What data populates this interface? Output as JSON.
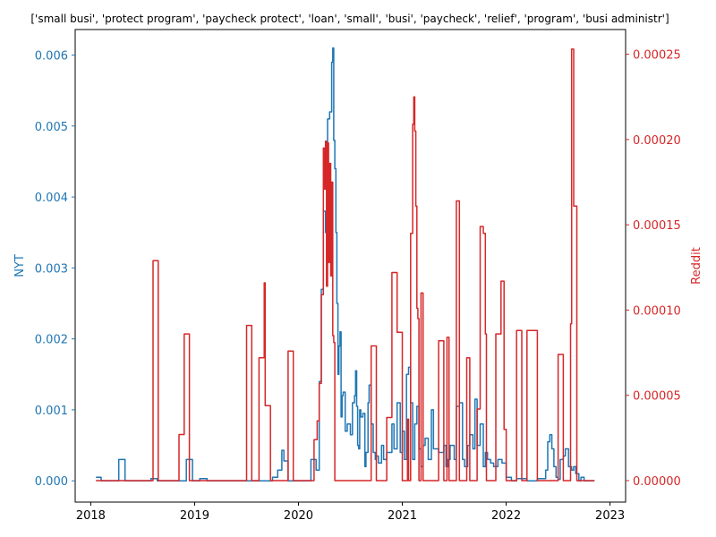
{
  "chart_data": {
    "type": "line",
    "title": "['small busi', 'protect program', 'paycheck protect', 'loan', 'small', 'busi', 'paycheck', 'relief', 'program', 'busi administr']",
    "xlabel": "",
    "ylabel_left": "NYT",
    "ylabel_right": "Reddit",
    "xlim": [
      2017.85,
      2023.15
    ],
    "ylim_left": [
      -0.0003,
      0.00636
    ],
    "ylim_right": [
      -1.26e-05,
      0.0002645
    ],
    "x_ticks": [
      2018,
      2019,
      2020,
      2021,
      2022,
      2023
    ],
    "x_tick_labels": [
      "2018",
      "2019",
      "2020",
      "2021",
      "2022",
      "2023"
    ],
    "y_ticks_left": [
      0,
      0.001,
      0.002,
      0.003,
      0.004,
      0.005,
      0.006
    ],
    "y_tick_labels_left": [
      "0.000",
      "0.001",
      "0.002",
      "0.003",
      "0.004",
      "0.005",
      "0.006"
    ],
    "y_ticks_right": [
      0,
      5e-05,
      0.0001,
      0.00015,
      0.0002,
      0.00025
    ],
    "y_tick_labels_right": [
      "0.00000",
      "0.00005",
      "0.00010",
      "0.00015",
      "0.00020",
      "0.00025"
    ],
    "grid": false,
    "legend": "none",
    "series": [
      {
        "axis": "left",
        "color": "#1f77b4",
        "x": [
          2018.05,
          2018.1,
          2018.27,
          2018.33,
          2018.58,
          2018.62,
          2018.64,
          2018.68,
          2018.92,
          2018.98,
          2019.05,
          2019.12,
          2019.55,
          2019.75,
          2019.8,
          2019.84,
          2019.86,
          2019.9,
          2019.93,
          2020.07,
          2020.12,
          2020.17,
          2020.2,
          2020.22,
          2020.24,
          2020.26,
          2020.28,
          2020.3,
          2020.32,
          2020.33,
          2020.34,
          2020.35,
          2020.36,
          2020.37,
          2020.38,
          2020.39,
          2020.4,
          2020.41,
          2020.42,
          2020.43,
          2020.45,
          2020.47,
          2020.5,
          2020.52,
          2020.54,
          2020.55,
          2020.56,
          2020.57,
          2020.58,
          2020.59,
          2020.6,
          2020.62,
          2020.64,
          2020.65,
          2020.67,
          2020.68,
          2020.7,
          2020.72,
          2020.74,
          2020.75,
          2020.77,
          2020.8,
          2020.82,
          2020.85,
          2020.9,
          2020.92,
          2020.95,
          2020.98,
          2021.0,
          2021.02,
          2021.04,
          2021.06,
          2021.08,
          2021.1,
          2021.12,
          2021.14,
          2021.16,
          2021.18,
          2021.2,
          2021.22,
          2021.25,
          2021.28,
          2021.3,
          2021.35,
          2021.4,
          2021.42,
          2021.44,
          2021.46,
          2021.5,
          2021.52,
          2021.55,
          2021.58,
          2021.6,
          2021.63,
          2021.65,
          2021.68,
          2021.7,
          2021.72,
          2021.75,
          2021.78,
          2021.8,
          2021.82,
          2021.85,
          2021.88,
          2021.92,
          2021.96,
          2022.0,
          2022.05,
          2022.1,
          2022.2,
          2022.3,
          2022.38,
          2022.4,
          2022.42,
          2022.44,
          2022.46,
          2022.48,
          2022.5,
          2022.52,
          2022.55,
          2022.57,
          2022.6,
          2022.63,
          2022.65,
          2022.67,
          2022.7,
          2022.72,
          2022.75,
          2022.78,
          2022.85
        ],
        "y": [
          5e-05,
          0.0,
          0.0003,
          0.0,
          3e-05,
          3e-05,
          0.0,
          0.0,
          0.0003,
          0.0,
          3e-05,
          0.0,
          0.0,
          5e-05,
          0.00015,
          0.00043,
          0.00028,
          0.0,
          0.0,
          0.0,
          0.0003,
          0.00015,
          0.0014,
          0.0027,
          0.0038,
          0.0035,
          0.0051,
          0.0052,
          0.0059,
          0.0061,
          0.0048,
          0.0044,
          0.0035,
          0.0025,
          0.0015,
          0.0019,
          0.0021,
          0.0009,
          0.0012,
          0.00125,
          0.0007,
          0.0008,
          0.00065,
          0.0011,
          0.0012,
          0.00155,
          0.00105,
          0.0005,
          0.00045,
          0.001,
          0.0009,
          0.00095,
          0.0002,
          0.0004,
          0.0011,
          0.00135,
          0.0008,
          0.0004,
          0.0003,
          0.00035,
          0.00025,
          0.0005,
          0.0003,
          0.0004,
          0.0008,
          0.00045,
          0.0011,
          0.0004,
          0.0007,
          0.0003,
          0.0015,
          0.0016,
          0.0011,
          0.0003,
          0.0008,
          0.00105,
          0.00045,
          0.0002,
          0.0005,
          0.0006,
          0.0003,
          0.001,
          0.00045,
          0.0004,
          0.0005,
          0.0002,
          0.0003,
          0.0005,
          0.0003,
          0.00105,
          0.0011,
          0.0003,
          0.0002,
          0.0005,
          0.00065,
          0.00045,
          0.00115,
          0.0005,
          0.0008,
          0.0002,
          0.0004,
          0.0003,
          0.00025,
          0.0002,
          0.0003,
          0.00025,
          5e-05,
          0.0,
          3e-05,
          0.0,
          3e-05,
          0.00015,
          0.00055,
          0.00065,
          0.00045,
          0.0002,
          5e-05,
          2e-05,
          0.0003,
          0.00035,
          0.00045,
          0.0002,
          0.00015,
          0.0002,
          0.0001,
          0.0,
          5e-05,
          0.0,
          0.0,
          0.0
        ]
      },
      {
        "axis": "right",
        "color": "#d62728",
        "x": [
          2018.05,
          2018.6,
          2018.65,
          2018.75,
          2018.85,
          2018.9,
          2018.95,
          2019.5,
          2019.55,
          2019.62,
          2019.67,
          2019.68,
          2019.73,
          2019.9,
          2019.95,
          2020.15,
          2020.18,
          2020.2,
          2020.22,
          2020.24,
          2020.25,
          2020.26,
          2020.27,
          2020.28,
          2020.29,
          2020.3,
          2020.31,
          2020.32,
          2020.33,
          2020.34,
          2020.35,
          2020.37,
          2020.4,
          2020.7,
          2020.75,
          2020.8,
          2020.85,
          2020.9,
          2020.95,
          2021.0,
          2021.05,
          2021.06,
          2021.08,
          2021.1,
          2021.11,
          2021.12,
          2021.13,
          2021.14,
          2021.15,
          2021.16,
          2021.18,
          2021.2,
          2021.25,
          2021.35,
          2021.4,
          2021.43,
          2021.45,
          2021.48,
          2021.52,
          2021.55,
          2021.58,
          2021.62,
          2021.65,
          2021.68,
          2021.72,
          2021.75,
          2021.78,
          2021.8,
          2021.81,
          2021.82,
          2021.85,
          2021.9,
          2021.95,
          2021.98,
          2022.0,
          2022.03,
          2022.1,
          2022.15,
          2022.2,
          2022.3,
          2022.35,
          2022.5,
          2022.55,
          2022.6,
          2022.62,
          2022.63,
          2022.65,
          2022.68,
          2022.7,
          2022.85
        ],
        "y": [
          0.0,
          0.000129,
          0.0,
          0.0,
          2.7e-05,
          8.6e-05,
          0.0,
          9.1e-05,
          0.0,
          7.2e-05,
          0.000116,
          4.4e-05,
          0.0,
          7.6e-05,
          0.0,
          2.4e-05,
          3.5e-05,
          5.7e-05,
          0.000109,
          0.000195,
          0.000171,
          0.000199,
          0.000114,
          0.000198,
          0.000128,
          0.000186,
          0.00012,
          0.000175,
          8.5e-05,
          8.1e-05,
          0.0,
          0.0,
          0.0,
          7.9e-05,
          0.0,
          0.0,
          3.7e-05,
          0.000122,
          8.7e-05,
          0.0,
          3.6e-05,
          0.0,
          0.000145,
          0.000209,
          0.000225,
          0.000205,
          0.000161,
          0.000101,
          9.5e-05,
          0.0,
          0.00011,
          0.0,
          0.0,
          8.2e-05,
          0.0,
          8.4e-05,
          0.0,
          0.0,
          0.000164,
          0.0,
          0.0,
          7.2e-05,
          0.0,
          0.0,
          4.2e-05,
          0.000149,
          0.000145,
          8.6e-05,
          0.0,
          0.0,
          0.0,
          8.6e-05,
          0.000117,
          3e-05,
          0.0,
          0.0,
          8.8e-05,
          0.0,
          8.8e-05,
          0.0,
          0.0,
          7.4e-05,
          0.0,
          0.0,
          9.2e-05,
          0.000253,
          0.000161,
          0.0,
          0.0,
          0.0
        ]
      }
    ]
  }
}
